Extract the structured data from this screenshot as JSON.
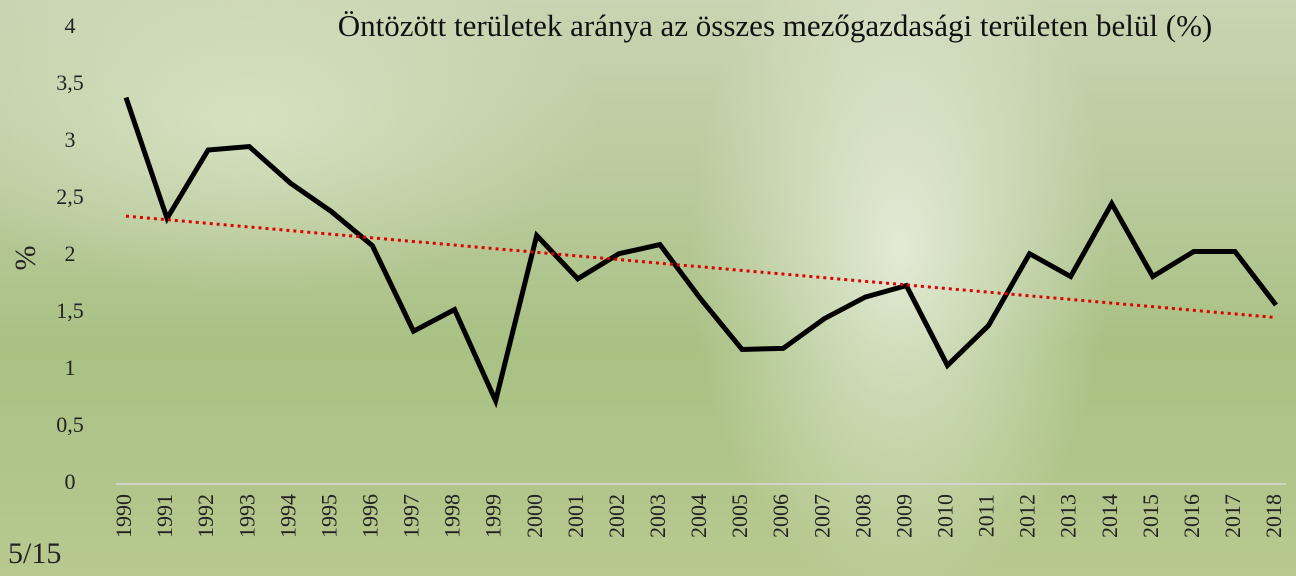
{
  "chart_data": {
    "type": "line",
    "title": "Öntözött területek aránya az összes mezőgazdasági területen belül (%)",
    "y_label": "%",
    "page_number": "5/15",
    "categories": [
      "1990",
      "1991",
      "1992",
      "1993",
      "1994",
      "1995",
      "1996",
      "1997",
      "1998",
      "1999",
      "2000",
      "2001",
      "2002",
      "2003",
      "2004",
      "2005",
      "2006",
      "2007",
      "2008",
      "2009",
      "2010",
      "2011",
      "2012",
      "2013",
      "2014",
      "2015",
      "2016",
      "2017",
      "2018"
    ],
    "series": [
      {
        "color": "#000000",
        "values": [
          3.39,
          2.33,
          2.93,
          2.96,
          2.64,
          2.39,
          2.09,
          1.34,
          1.53,
          0.73,
          2.18,
          1.8,
          2.02,
          2.1,
          1.62,
          1.18,
          1.19,
          1.45,
          1.64,
          1.74,
          1.04,
          1.39,
          2.02,
          1.82,
          2.46,
          1.82,
          2.04,
          2.04,
          1.57
        ]
      }
    ],
    "trendline": {
      "color": "#e00000",
      "values": [
        2.35,
        1.46
      ]
    },
    "ylim": [
      0,
      4
    ],
    "yticks": [
      0,
      {
        "value": 0.5,
        "label": "0,5"
      },
      1,
      {
        "value": 1.5,
        "label": "1,5"
      },
      2,
      {
        "value": 2.5,
        "label": "2,5"
      },
      3,
      {
        "value": 3.5,
        "label": "3,5"
      },
      4
    ]
  }
}
